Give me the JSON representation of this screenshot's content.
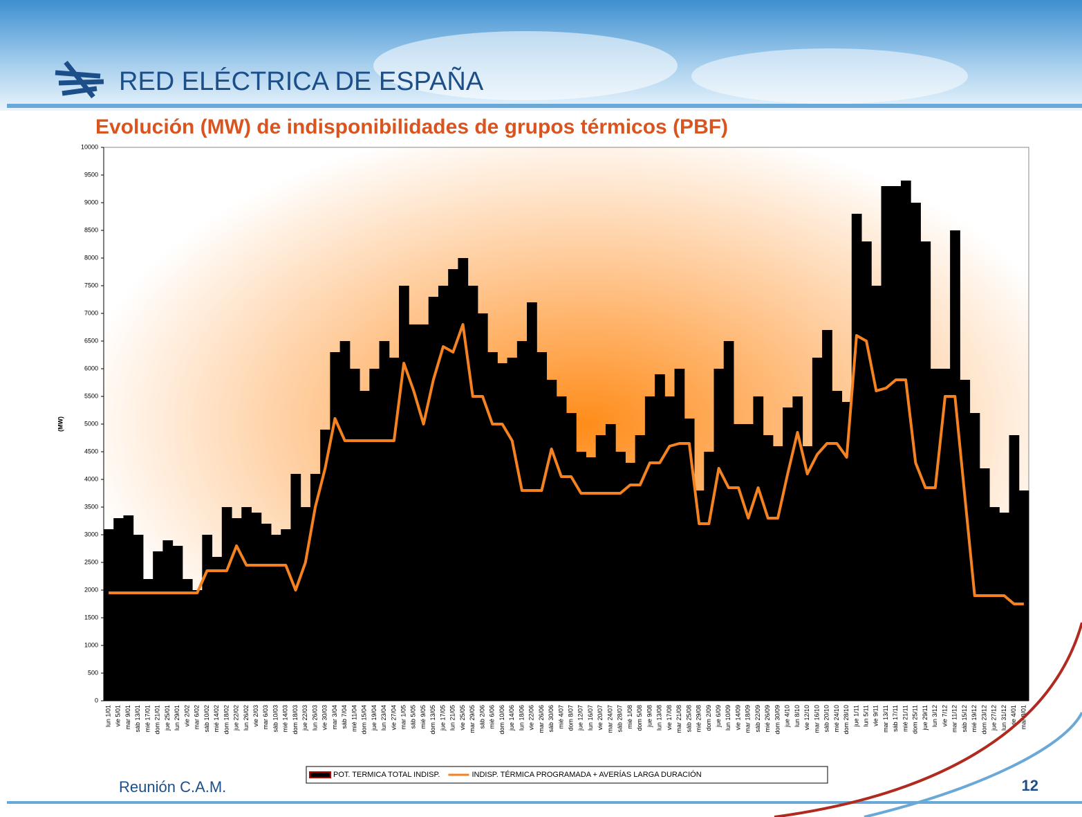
{
  "header": {
    "logo_text": "RED ELÉCTRICA DE ESPAÑA"
  },
  "footer": {
    "left": "Reunión C.A.M.",
    "page": 12
  },
  "chart_data": {
    "type": "bar_line",
    "title": "Evolución (MW) de indisponibilidades de grupos térmicos (PBF)",
    "y_label": "(MW)",
    "ylim": [
      0,
      10000
    ],
    "yticks": [
      0,
      500,
      1000,
      1500,
      2000,
      2500,
      3000,
      3500,
      4000,
      4500,
      5000,
      5500,
      6000,
      6500,
      7000,
      7500,
      8000,
      8500,
      9000,
      9500,
      10000
    ],
    "categories": [
      "lun 1/01",
      "vie 5/01",
      "mar 9/01",
      "sáb 13/01",
      "mié 17/01",
      "dom 21/01",
      "jue 25/01",
      "lun 29/01",
      "vie 2/02",
      "mar 6/02",
      "sáb 10/02",
      "mié 14/02",
      "dom 18/02",
      "jue 22/02",
      "lun 26/02",
      "vie 2/03",
      "mar 6/03",
      "sáb 10/03",
      "mié 14/03",
      "dom 18/03",
      "jue 22/03",
      "lun 26/03",
      "vie 30/03",
      "mar 3/04",
      "sáb 7/04",
      "mié 11/04",
      "dom 15/04",
      "jue 19/04",
      "lun 23/04",
      "vie 27/04",
      "mar 1/05",
      "sáb 5/05",
      "mié 9/05",
      "dom 13/05",
      "jue 17/05",
      "lun 21/05",
      "vie 25/05",
      "mar 29/05",
      "sáb 2/06",
      "mié 6/06",
      "dom 10/06",
      "jue 14/06",
      "lun 18/06",
      "vie 22/06",
      "mar 26/06",
      "sáb 30/06",
      "mié 4/07",
      "dom 8/07",
      "jue 12/07",
      "lun 16/07",
      "vie 20/07",
      "mar 24/07",
      "sáb 28/07",
      "mié 1/08",
      "dom 5/08",
      "jue 9/08",
      "lun 13/08",
      "vie 17/08",
      "mar 21/08",
      "sáb 25/08",
      "mié 29/08",
      "dom 2/09",
      "jue 6/09",
      "lun 10/09",
      "vie 14/09",
      "mar 18/09",
      "sáb 22/09",
      "mié 26/09",
      "dom 30/09",
      "jue 4/10",
      "lun 8/10",
      "vie 12/10",
      "mar 16/10",
      "sáb 20/10",
      "mié 24/10",
      "dom 28/10",
      "jue 1/11",
      "lun 5/11",
      "vie 9/11",
      "mar 13/11",
      "sáb 17/11",
      "mié 21/11",
      "dom 25/11",
      "jue 29/11",
      "lun 3/12",
      "vie 7/12",
      "mar 11/12",
      "sáb 15/12",
      "mié 19/12",
      "dom 23/12",
      "jue 27/12",
      "lun 31/12",
      "vie 4/01",
      "mar 8/01"
    ],
    "series": [
      {
        "name": "POT. TERMICA TOTAL INDISP.",
        "color": "#000000",
        "type": "bar",
        "values": [
          3100,
          3300,
          3350,
          3000,
          2200,
          2700,
          2900,
          2800,
          2200,
          2000,
          3000,
          2600,
          3500,
          3300,
          3500,
          3400,
          3200,
          3000,
          3100,
          4100,
          3500,
          4100,
          4900,
          6300,
          6500,
          6000,
          5600,
          6000,
          6500,
          6200,
          7500,
          6800,
          6800,
          7300,
          7500,
          7800,
          8000,
          7500,
          7000,
          6300,
          6100,
          6200,
          6500,
          7200,
          6300,
          5800,
          5500,
          5200,
          4500,
          4400,
          4800,
          5000,
          4500,
          4300,
          4800,
          5500,
          5900,
          5500,
          6000,
          5100,
          3800,
          4500,
          6000,
          6500,
          5000,
          5000,
          5500,
          4800,
          4600,
          5300,
          5500,
          4600,
          6200,
          6700,
          5600,
          5400,
          8800,
          8300,
          7500,
          9300,
          9300,
          9400,
          9000,
          8300,
          6000,
          6000,
          8500,
          5800,
          5200,
          4200,
          3500,
          3400,
          4800,
          3800
        ]
      },
      {
        "name": "INDISP. TÉRMICA PROGRAMADA + AVERÍAS LARGA DURACIÓN",
        "color": "#f58220",
        "type": "line",
        "values": [
          1950,
          1950,
          1950,
          1950,
          1950,
          1950,
          1950,
          1950,
          1950,
          1950,
          2350,
          2350,
          2350,
          2800,
          2450,
          2450,
          2450,
          2450,
          2450,
          2000,
          2500,
          3500,
          4200,
          5100,
          4700,
          4700,
          4700,
          4700,
          4700,
          4700,
          6100,
          5600,
          5000,
          5800,
          6400,
          6300,
          6800,
          5500,
          5500,
          5000,
          5000,
          4700,
          3800,
          3800,
          3800,
          4550,
          4050,
          4050,
          3750,
          3750,
          3750,
          3750,
          3750,
          3900,
          3900,
          4300,
          4300,
          4600,
          4650,
          4650,
          3200,
          3200,
          4200,
          3850,
          3850,
          3300,
          3850,
          3300,
          3300,
          4100,
          4850,
          4100,
          4450,
          4650,
          4650,
          4400,
          6600,
          6500,
          5600,
          5650,
          5800,
          5800,
          4300,
          3850,
          3850,
          5500,
          5500,
          3700,
          1900,
          1900,
          1900,
          1900,
          1750,
          1750
        ]
      }
    ]
  }
}
